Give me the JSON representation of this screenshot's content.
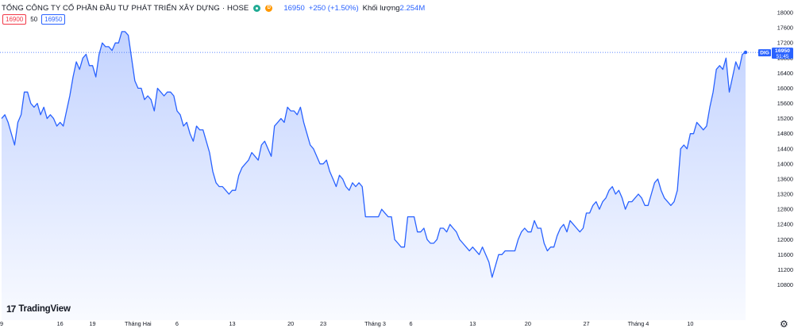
{
  "header": {
    "title": "TỔNG CÔNG TY CỔ PHẦN ĐẦU TƯ PHÁT TRIỂN XÂY DỰNG",
    "separator": "·",
    "exchange": "HOSE",
    "badge_d": "D",
    "price": "16950",
    "change": "+250 (+1.50%)",
    "volume_label": "Khối lượng",
    "volume_value": "2.254M"
  },
  "quote": {
    "bid": "16900",
    "spread": "50",
    "ask": "16950"
  },
  "brand": {
    "mark": "17",
    "name": "TradingView"
  },
  "colors": {
    "line": "#2962ff",
    "fill": "#2962ff",
    "axis_text": "#131722",
    "dotted_line": "#2962ff"
  },
  "icons": [
    "settings-gear-icon",
    "market-status-icon"
  ],
  "chart_data": {
    "type": "area",
    "ylim": [
      10400,
      18000
    ],
    "y_ticks": [
      10800,
      11200,
      11600,
      12000,
      12400,
      12800,
      13200,
      13600,
      14000,
      14400,
      14800,
      15200,
      15600,
      16000,
      16400,
      16800,
      17200,
      17600,
      18000
    ],
    "x_ticks": [
      "9",
      "16",
      "19",
      "Tháng Hai",
      "6",
      "13",
      "20",
      "23",
      "Tháng 3",
      "6",
      "13",
      "20",
      "27",
      "Tháng 4",
      "10"
    ],
    "last_price_label": {
      "symbol": "DIG",
      "price": "16950",
      "countdown": "51:45"
    },
    "series": [
      {
        "values": [
          15200,
          15300,
          15100,
          14800,
          14500,
          15100,
          15300,
          15900,
          15900,
          15600,
          15500,
          15600,
          15300,
          15500,
          15200,
          15300,
          15200,
          15000,
          15100,
          15000,
          15400,
          15800,
          16300,
          16700,
          16500,
          16800,
          16900,
          16600,
          16600,
          16300,
          16900,
          17200,
          17100,
          17100,
          17000,
          17200,
          17200,
          17500,
          17500,
          17400,
          16800,
          16200,
          16000,
          16000,
          15700,
          15800,
          15700,
          15400,
          16000,
          15900,
          15800,
          15900,
          15900,
          15800,
          15400,
          15300,
          15000,
          15100,
          14800,
          14600,
          15000,
          14900,
          14900,
          14600,
          14300,
          13800,
          13500,
          13400,
          13400,
          13300,
          13200,
          13300,
          13300,
          13700,
          13900,
          14000,
          14100,
          14300,
          14200,
          14100,
          14500,
          14600,
          14400,
          14200,
          15000,
          15100,
          15200,
          15100,
          15500,
          15400,
          15400,
          15300,
          15500,
          15100,
          14800,
          14500,
          14400,
          14200,
          14000,
          14000,
          14100,
          13800,
          13600,
          13400,
          13700,
          13600,
          13400,
          13300,
          13500,
          13400,
          13500,
          13400,
          12600,
          12600,
          12600,
          12600,
          12600,
          12800,
          12700,
          12600,
          12600,
          12000,
          11900,
          11800,
          11800,
          12600,
          12600,
          12600,
          12200,
          12200,
          12300,
          12000,
          11900,
          11900,
          12000,
          12300,
          12300,
          12200,
          12400,
          12300,
          12200,
          12000,
          11900,
          11800,
          11700,
          11800,
          11700,
          11600,
          11800,
          11600,
          11400,
          11000,
          11300,
          11600,
          11600,
          11700,
          11700,
          11700,
          11700,
          12000,
          12200,
          12300,
          12200,
          12200,
          12500,
          12300,
          12300,
          11900,
          11700,
          11800,
          11800,
          12100,
          12300,
          12400,
          12200,
          12500,
          12400,
          12300,
          12200,
          12300,
          12700,
          12700,
          12900,
          13000,
          12800,
          13000,
          13100,
          13300,
          13400,
          13200,
          13300,
          13100,
          12800,
          13000,
          13000,
          13100,
          13200,
          13100,
          12900,
          12900,
          13200,
          13500,
          13600,
          13300,
          13100,
          13000,
          12900,
          13000,
          13300,
          14400,
          14500,
          14400,
          14800,
          14800,
          15100,
          15000,
          14900,
          15000,
          15500,
          15900,
          16500,
          16600,
          16500,
          16800,
          15900,
          16300,
          16700,
          16500,
          16900,
          16950
        ]
      }
    ]
  }
}
